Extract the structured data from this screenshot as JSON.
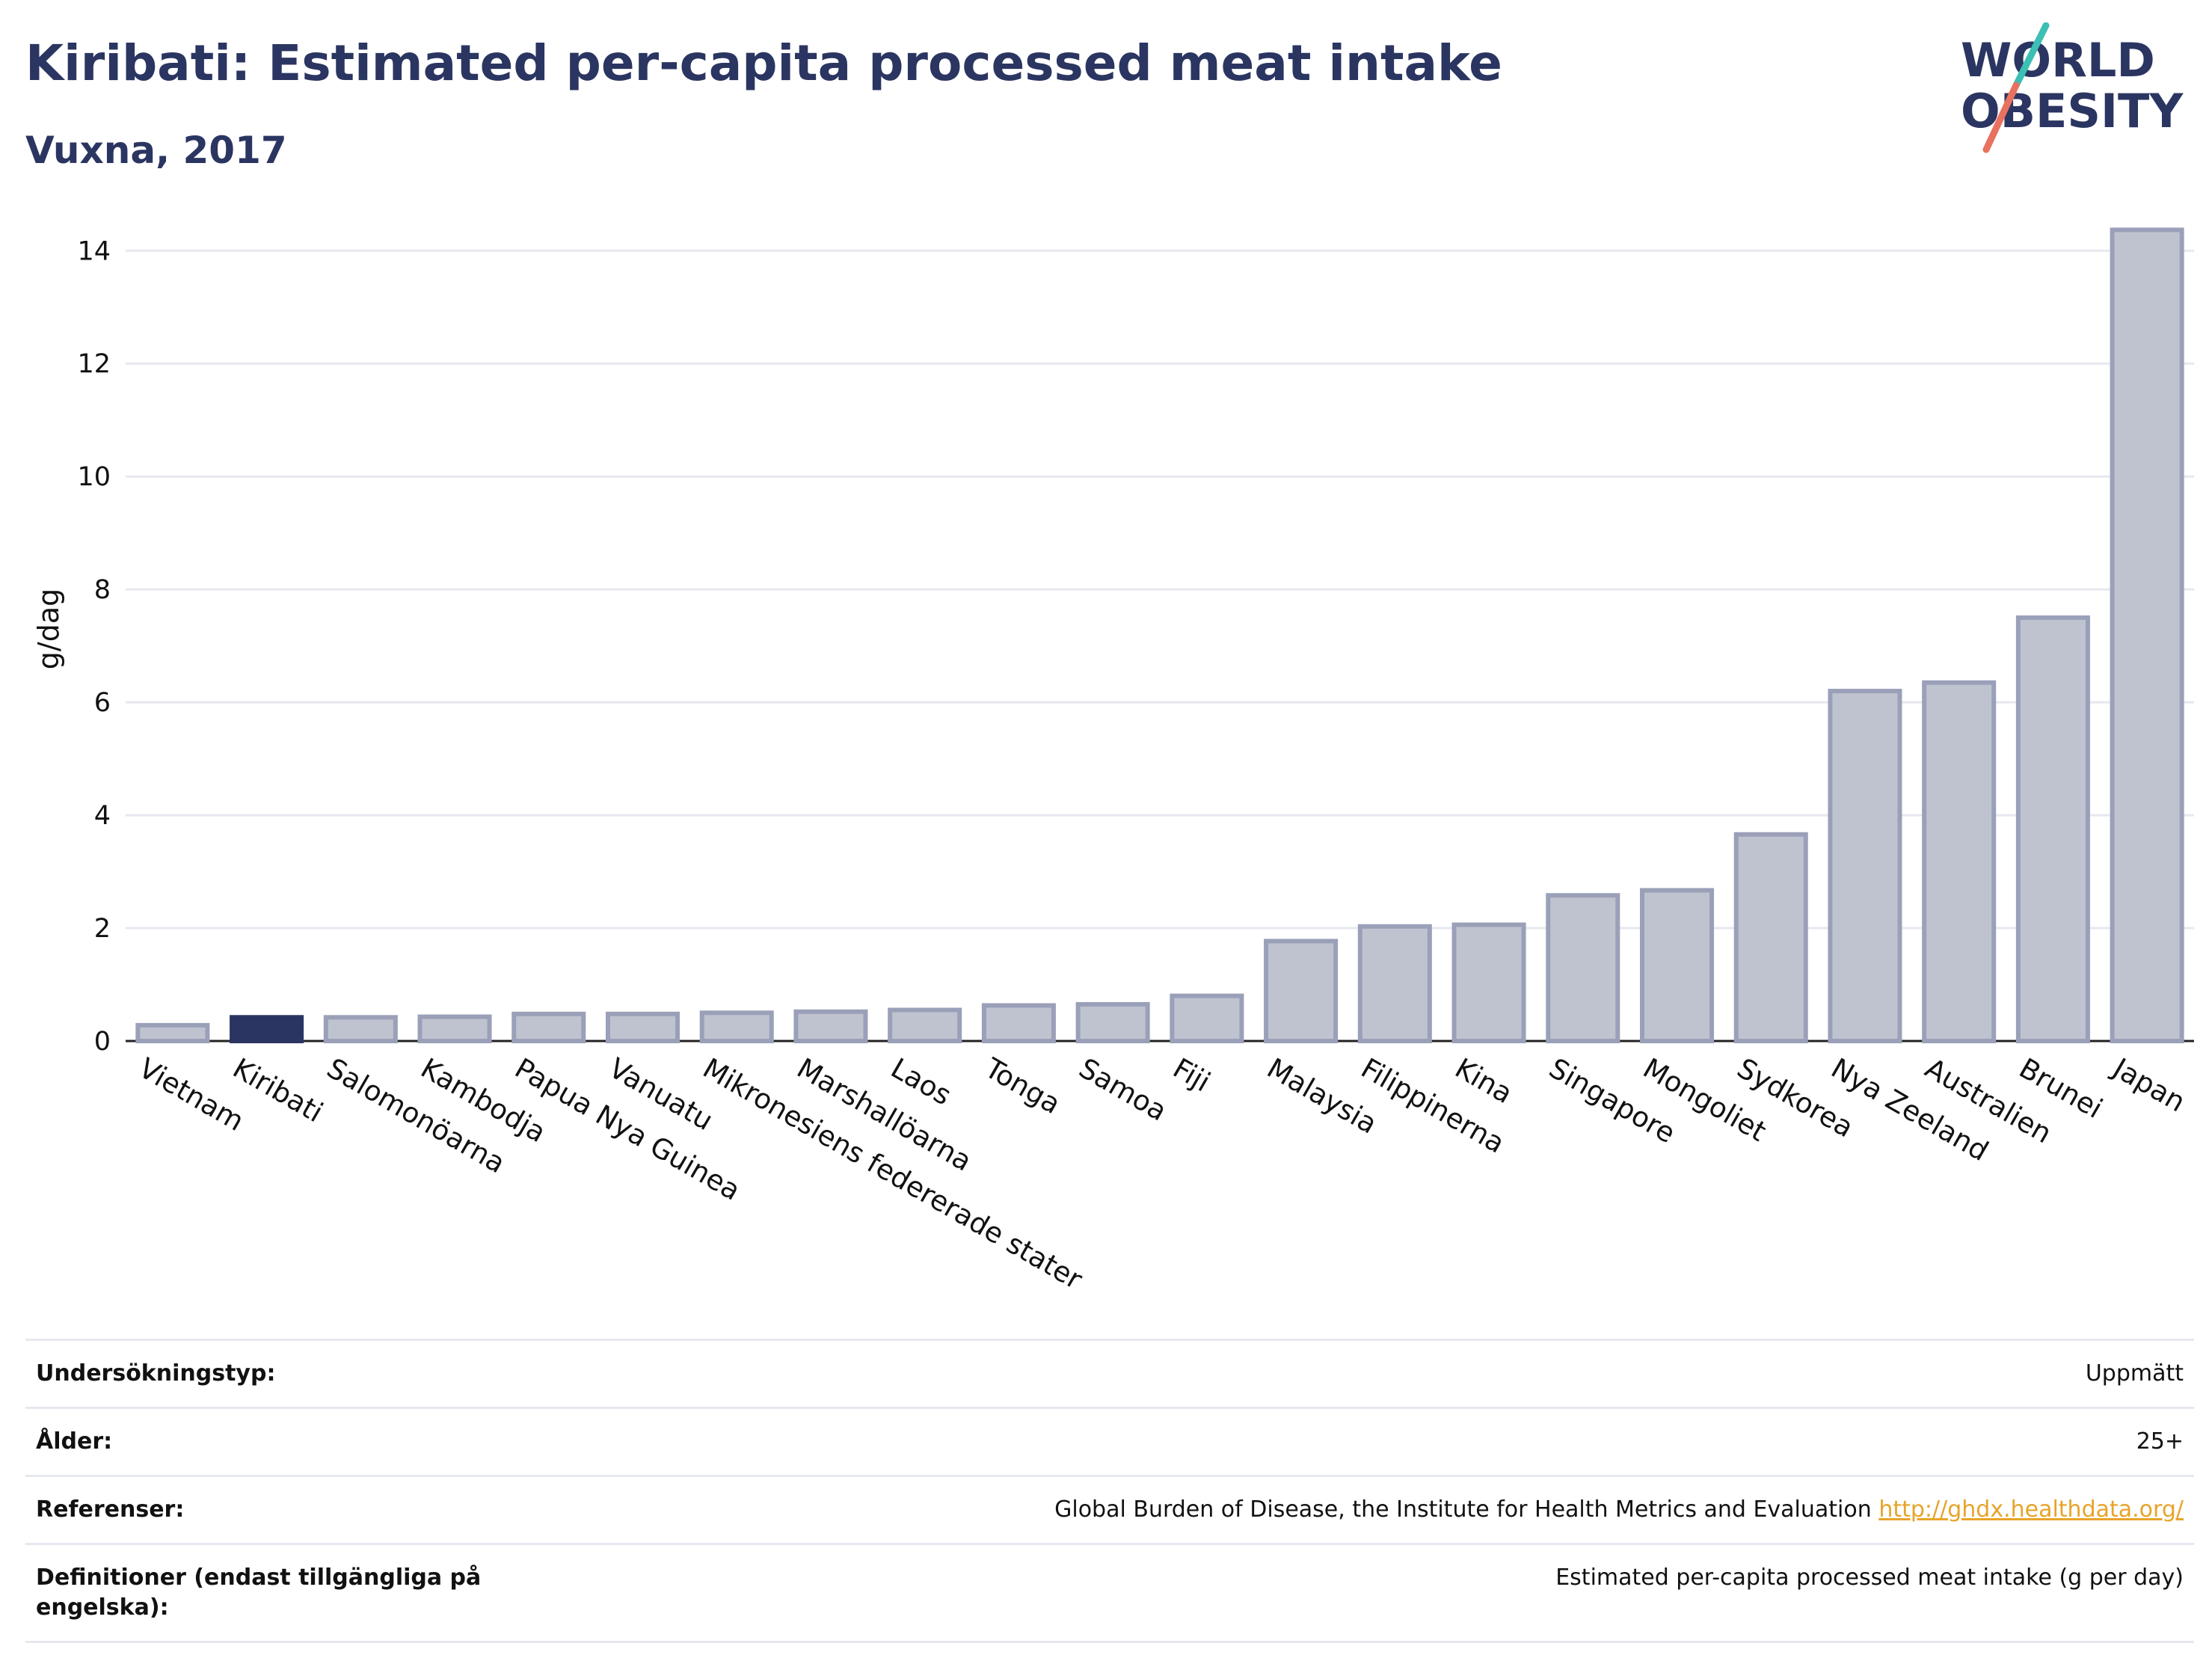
{
  "header": {
    "title": "Kiribati: Estimated per-capita processed meat intake",
    "subtitle": "Vuxna, 2017"
  },
  "logo": {
    "line1": "WORLD",
    "line2": "OBESITY",
    "accent_teal": "#3cbfb4",
    "accent_coral": "#e8715f",
    "text_color": "#2b3561"
  },
  "colors": {
    "bar": "#bfc3d0",
    "bar_stroke": "#9aa0b8",
    "highlight": "#2b3561",
    "grid": "#e6e8f0"
  },
  "chart_data": {
    "type": "bar",
    "title": "Kiribati: Estimated per-capita processed meat intake",
    "subtitle": "Vuxna, 2017",
    "xlabel": "",
    "ylabel": "g/dag",
    "ylim": [
      0,
      14.6
    ],
    "yticks": [
      0,
      2,
      4,
      6,
      8,
      10,
      12,
      14
    ],
    "grid": true,
    "highlight": "Kiribati",
    "categories": [
      "Vietnam",
      "Kiribati",
      "Salomonöarna",
      "Kambodja",
      "Papua Nya Guinea",
      "Vanuatu",
      "Mikronesiens federerade stater",
      "Marshallöarna",
      "Laos",
      "Tonga",
      "Samoa",
      "Fiji",
      "Malaysia",
      "Filippinerna",
      "Kina",
      "Singapore",
      "Mongoliet",
      "Sydkorea",
      "Nya Zeeland",
      "Australien",
      "Brunei",
      "Japan"
    ],
    "values": [
      0.28,
      0.42,
      0.42,
      0.43,
      0.48,
      0.48,
      0.5,
      0.52,
      0.55,
      0.63,
      0.65,
      0.8,
      1.77,
      2.03,
      2.06,
      2.58,
      2.67,
      3.66,
      6.2,
      6.35,
      7.5,
      14.37
    ]
  },
  "info": {
    "rows": [
      {
        "key": "Undersökningstyp:",
        "value": "Uppmätt"
      },
      {
        "key": "Ålder:",
        "value": "25+"
      },
      {
        "key": "Referenser:",
        "value": "Global Burden of Disease, the Institute for Health Metrics and Evaluation",
        "link": "http://ghdx.healthdata.org/"
      },
      {
        "key": "Definitioner (endast tillgängliga på engelska):",
        "value": "Estimated per-capita processed meat intake (g per day)"
      }
    ]
  }
}
